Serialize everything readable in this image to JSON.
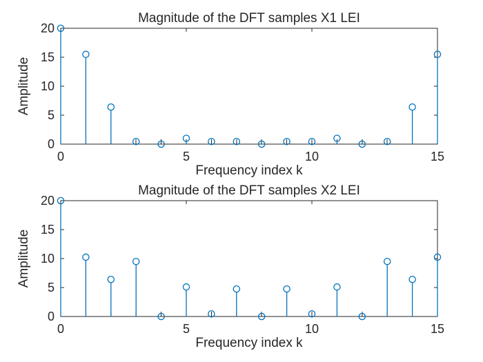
{
  "figure": {
    "background": "#ffffff",
    "axis_color": "#262626",
    "stem_color": "#0072BD"
  },
  "chart_data": [
    {
      "type": "stem",
      "title": "Magnitude of the DFT samples X1 LEI",
      "xlabel": "Frequency index k",
      "ylabel": "Amplitude",
      "x": [
        0,
        1,
        2,
        3,
        4,
        5,
        6,
        7,
        8,
        9,
        10,
        11,
        12,
        13,
        14,
        15
      ],
      "values": [
        20,
        15.5,
        6.4,
        0.45,
        0,
        1.0,
        0.45,
        0.45,
        0,
        0.45,
        0.45,
        1.0,
        0,
        0.45,
        6.4,
        15.5
      ],
      "xlim": [
        0,
        15
      ],
      "ylim": [
        0,
        20
      ],
      "xtick_positions": [
        0,
        1,
        2,
        3,
        4,
        5,
        6,
        7,
        8,
        9,
        10,
        11,
        12,
        13,
        14,
        15
      ],
      "xtick_labeled": [
        0,
        5,
        10,
        15
      ],
      "ytick_labeled": [
        0,
        5,
        10,
        15,
        20
      ],
      "marker": "open-circle",
      "grid": false,
      "legend": "none"
    },
    {
      "type": "stem",
      "title": "Magnitude of the DFT samples X2 LEI",
      "xlabel": "Frequency index k",
      "ylabel": "Amplitude",
      "x": [
        0,
        1,
        2,
        3,
        4,
        5,
        6,
        7,
        8,
        9,
        10,
        11,
        12,
        13,
        14,
        15
      ],
      "values": [
        20,
        10.25,
        6.4,
        9.5,
        0,
        5.1,
        0.45,
        4.75,
        0,
        4.75,
        0.45,
        5.1,
        0,
        9.5,
        6.4,
        10.25
      ],
      "xlim": [
        0,
        15
      ],
      "ylim": [
        0,
        20
      ],
      "xtick_positions": [
        0,
        1,
        2,
        3,
        4,
        5,
        6,
        7,
        8,
        9,
        10,
        11,
        12,
        13,
        14,
        15
      ],
      "xtick_labeled": [
        0,
        5,
        10,
        15
      ],
      "ytick_labeled": [
        0,
        5,
        10,
        15,
        20
      ],
      "marker": "open-circle",
      "grid": false,
      "legend": "none"
    }
  ]
}
